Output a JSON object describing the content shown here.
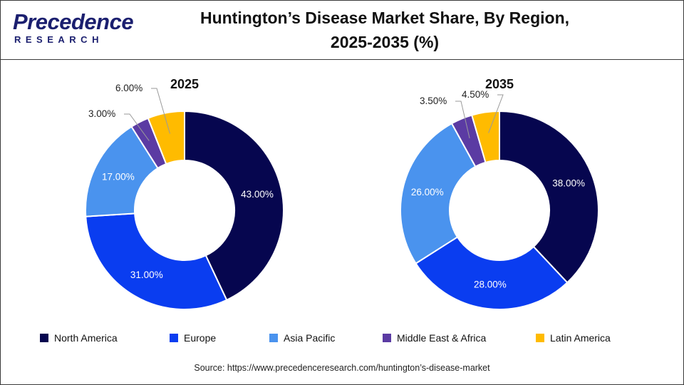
{
  "header": {
    "brand": "Precedence",
    "brand_sub": "RESEARCH",
    "title_line1": "Huntington’s Disease Market Share, By Region,",
    "title_line2": "2025-2035 (%)"
  },
  "chart_data": [
    {
      "type": "pie",
      "title": "2025",
      "categories": [
        "North America",
        "Europe",
        "Asia Pacific",
        "Middle East & Africa",
        "Latin America"
      ],
      "values": [
        43.0,
        31.0,
        17.0,
        3.0,
        6.0
      ],
      "labels": [
        "43.00%",
        "31.00%",
        "17.00%",
        "3.00%",
        "6.00%"
      ],
      "colors": [
        "#06064f",
        "#0a3df0",
        "#4a93ee",
        "#5b3ba3",
        "#ffbb00"
      ],
      "donut": true,
      "legend": "bottom"
    },
    {
      "type": "pie",
      "title": "2035",
      "categories": [
        "North America",
        "Europe",
        "Asia Pacific",
        "Middle East & Africa",
        "Latin America"
      ],
      "values": [
        38.0,
        28.0,
        26.0,
        3.5,
        4.5
      ],
      "labels": [
        "38.00%",
        "28.00%",
        "26.00%",
        "3.50%",
        "4.50%"
      ],
      "colors": [
        "#06064f",
        "#0a3df0",
        "#4a93ee",
        "#5b3ba3",
        "#ffbb00"
      ],
      "donut": true,
      "legend": "bottom"
    }
  ],
  "legend": {
    "items": [
      {
        "label": "North America",
        "color": "#06064f"
      },
      {
        "label": "Europe",
        "color": "#0a3df0"
      },
      {
        "label": "Asia Pacific",
        "color": "#4a93ee"
      },
      {
        "label": "Middle East & Africa",
        "color": "#5b3ba3"
      },
      {
        "label": "Latin America",
        "color": "#ffbb00"
      }
    ]
  },
  "source": "Source: https://www.precedenceresearch.com/huntington’s-disease-market"
}
